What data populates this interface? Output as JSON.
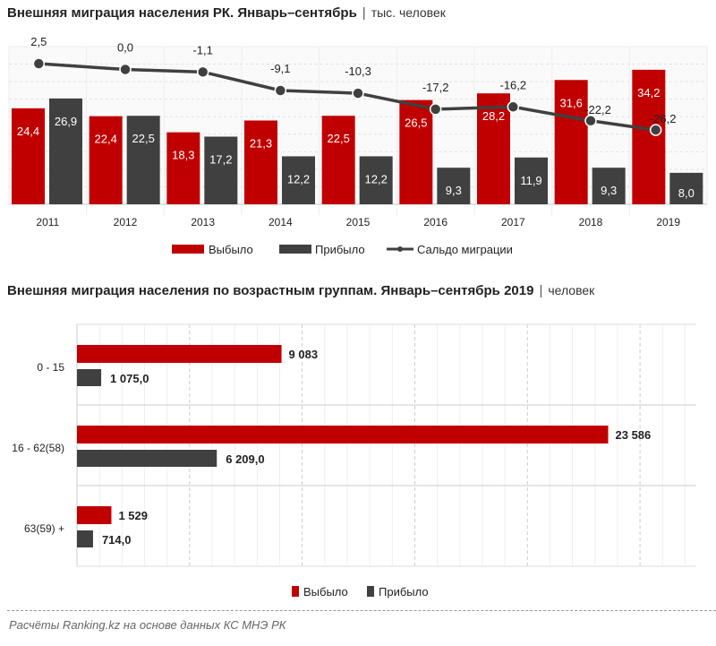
{
  "colors": {
    "out": "#c00000",
    "in": "#404040",
    "line": "#404040"
  },
  "chart_data": [
    {
      "type": "bar+line",
      "title": "Внешняя миграция населения РК. Январь–сентябрь",
      "unit": "тыс. человек",
      "categories": [
        "2011",
        "2012",
        "2013",
        "2014",
        "2015",
        "2016",
        "2017",
        "2018",
        "2019"
      ],
      "series": [
        {
          "name": "Выбыло",
          "type": "bar",
          "values": [
            24.4,
            22.4,
            18.3,
            21.3,
            22.5,
            26.5,
            28.2,
            31.6,
            34.2
          ],
          "labels": [
            "24,4",
            "22,4",
            "18,3",
            "21,3",
            "22,5",
            "26,5",
            "28,2",
            "31,6",
            "34,2"
          ]
        },
        {
          "name": "Прибыло",
          "type": "bar",
          "values": [
            26.9,
            22.5,
            17.2,
            12.2,
            12.2,
            9.3,
            11.9,
            9.3,
            8.0
          ],
          "labels": [
            "26,9",
            "22,5",
            "17,2",
            "12,2",
            "12,2",
            "9,3",
            "11,9",
            "9,3",
            "8,0"
          ]
        },
        {
          "name": "Сальдо миграции",
          "type": "line",
          "values": [
            2.5,
            0.0,
            -1.1,
            -9.1,
            -10.3,
            -17.2,
            -16.2,
            -22.2,
            -26.2
          ],
          "labels": [
            "2,5",
            "0,0",
            "-1,1",
            "-9,1",
            "-10,3",
            "-17,2",
            "-16,2",
            "-22,2",
            "-26,2"
          ]
        }
      ],
      "legend": "bottom",
      "grid": true
    },
    {
      "type": "bar",
      "orientation": "horizontal",
      "title": "Внешняя миграция населения по  возрастным группам. Январь–сентябрь 2019",
      "unit": "человек",
      "categories": [
        "0 - 15",
        "16 - 62(58)",
        "63(59) +"
      ],
      "series": [
        {
          "name": "Выбыло",
          "values": [
            9083,
            23586,
            1529
          ],
          "labels": [
            "9 083",
            "23 586",
            "1 529"
          ]
        },
        {
          "name": "Прибыло",
          "values": [
            1075,
            6209,
            714
          ],
          "labels": [
            "1 075,0",
            "6 209,0",
            "714,0"
          ]
        }
      ],
      "xlim": [
        0,
        27500
      ],
      "legend": "bottom",
      "grid": true
    }
  ],
  "footer": "Расчёты Ranking.kz на основе данных  КС МНЭ РК"
}
